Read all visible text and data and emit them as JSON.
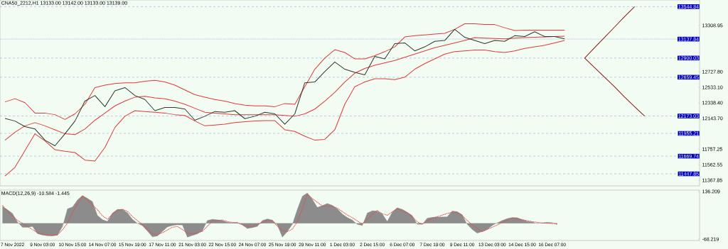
{
  "chart_data": [
    {
      "type": "line",
      "title": "CNA50_2212,H1 13133.00 13142.00 13133.00 13139.00",
      "categories": [
        null,
        null,
        null,
        null,
        null,
        null,
        null,
        null,
        null,
        null,
        null,
        null,
        null,
        null,
        null,
        null,
        null,
        null,
        null,
        null,
        null,
        null,
        null,
        null,
        null,
        null,
        null,
        null,
        null,
        null,
        null,
        null,
        null,
        null,
        null,
        null,
        null,
        null,
        null,
        null,
        null,
        null,
        null,
        null,
        null,
        null,
        null,
        null,
        null,
        null,
        null,
        null,
        null,
        null,
        null,
        null,
        null,
        null,
        null,
        null,
        null,
        null,
        null,
        null,
        null,
        null,
        null,
        null,
        null,
        null
      ],
      "ylim": [
        11297,
        13628
      ],
      "yticks": [
        13308.95,
        {
          "value": 12727.8,
          "label": "12727.80"
        },
        {
          "value": 12533.1,
          "label": "12533.10"
        },
        {
          "value": 12338.4,
          "label": "12338.40"
        },
        {
          "value": 12143.7,
          "label": "12143.70"
        },
        11757.25,
        11562.55,
        11367.85
      ],
      "tick_labels": "y",
      "ref_lines": [
        {
          "axis": "y",
          "value": 13544.84,
          "label": "13544.84",
          "color": "#7f9fe0",
          "line_style": "dashed"
        },
        {
          "axis": "y",
          "value": 13137.84,
          "label": "13137.84",
          "color": "#8fa8e0",
          "line_style": "dotted"
        },
        {
          "axis": "y",
          "value": 12900.03,
          "label": "12900.03",
          "color": "#7f9fe0",
          "line_style": "dashed"
        },
        {
          "axis": "y",
          "value": 12659.45,
          "label": "12659.45",
          "color": "#7f9fe0",
          "line_style": "dashed"
        },
        {
          "axis": "y",
          "value": 12173.03,
          "label": "12173.03",
          "color": "#7f9fe0",
          "line_style": "dashed"
        },
        {
          "axis": "y",
          "value": 11955.21,
          "label": "11955.21",
          "color": "#7f9fe0",
          "line_style": "dashed"
        },
        {
          "axis": "y",
          "value": 11669.74,
          "label": "11669.74",
          "color": "#7f9fe0",
          "line_style": "dashed"
        },
        {
          "axis": "y",
          "value": 11447.85,
          "label": "11447.85",
          "color": "#7f9fe0",
          "line_style": "dashed"
        }
      ],
      "series": [
        {
          "color": "#e03a3a",
          "values": [
            12350,
            12390,
            12340,
            12210,
            12210,
            12190,
            12130,
            12200,
            12320,
            12530,
            12560,
            12580,
            12590,
            12590,
            12610,
            12620,
            12600,
            12560,
            12500,
            12440,
            12410,
            12380,
            12360,
            12330,
            12310,
            12300,
            12300,
            12290,
            12330,
            12320,
            12540,
            12760,
            12900,
            13005,
            12970,
            12890,
            12890,
            12930,
            12980,
            13040,
            13165,
            13180,
            13190,
            13200,
            13210,
            13260,
            13330,
            13330,
            13320,
            13320,
            13280,
            13246,
            13250,
            13250,
            13250,
            13250,
            13250,
            null,
            null,
            null,
            null,
            null,
            null,
            null,
            null,
            null,
            null,
            null,
            null,
            null
          ]
        },
        {
          "color": "#e03a3a",
          "values": [
            11870,
            11970,
            12050,
            12090,
            12050,
            12000,
            11950,
            11940,
            12010,
            12120,
            12210,
            12300,
            12360,
            12410,
            12420,
            12400,
            12390,
            12360,
            12320,
            12270,
            12220,
            12210,
            12200,
            12190,
            12190,
            12190,
            12190,
            12190,
            12180,
            12170,
            12200,
            12260,
            12360,
            12471,
            12600,
            12710,
            12770,
            12810,
            12840,
            12870,
            12910,
            12950,
            12990,
            13030,
            13060,
            13090,
            13120,
            13157,
            13150,
            13145,
            13140,
            13150,
            13157,
            13160,
            13165,
            13170,
            13174,
            null,
            null,
            null,
            null,
            null,
            null,
            null,
            null,
            null,
            null,
            null,
            null,
            null
          ]
        },
        {
          "color": "#e03a3a",
          "values": [
            11420,
            11530,
            11740,
            11950,
            11860,
            11750,
            11730,
            11715,
            11620,
            11608,
            11780,
            12030,
            12170,
            12240,
            12230,
            12220,
            12210,
            12190,
            12180,
            12110,
            12050,
            12060,
            12070,
            12090,
            12100,
            12110,
            12115,
            12115,
            12000,
            11980,
            11920,
            11870,
            11880,
            12000,
            12320,
            12540,
            12600,
            12640,
            12640,
            12630,
            12660,
            12760,
            12830,
            12890,
            12950,
            12980,
            12990,
            13000,
            13000,
            12980,
            12970,
            12990,
            13020,
            13040,
            13060,
            13090,
            13121,
            null,
            null,
            null,
            null,
            null,
            null,
            null,
            null,
            null,
            null,
            null,
            null,
            null
          ]
        },
        {
          "color": "#2e3a2e",
          "values": [
            12142,
            12110,
            12040,
            12010,
            11870,
            11800,
            11950,
            12110,
            12360,
            12430,
            12290,
            12490,
            12530,
            12430,
            12380,
            12240,
            12280,
            12280,
            12260,
            12120,
            12170,
            12230,
            12220,
            12240,
            12140,
            12170,
            12220,
            12200,
            12070,
            12200,
            12590,
            12600,
            12730,
            12850,
            12760,
            12720,
            12690,
            12920,
            12890,
            13080,
            13090,
            12990,
            13040,
            13110,
            13120,
            13260,
            13160,
            13120,
            13080,
            13120,
            13110,
            13180,
            13170,
            13230,
            13170,
            13170,
            13140,
            null,
            null,
            null,
            null,
            null,
            null,
            null,
            null,
            null,
            null,
            null,
            null,
            null
          ]
        },
        {
          "color": "#8b1a1a",
          "values": [
            null,
            null,
            null,
            null,
            null,
            null,
            null,
            null,
            null,
            null,
            null,
            null,
            null,
            null,
            null,
            null,
            null,
            null,
            null,
            null,
            null,
            null,
            null,
            null,
            null,
            null,
            null,
            null,
            null,
            null,
            null,
            null,
            null,
            null,
            null,
            null,
            null,
            null,
            null,
            null,
            null,
            null,
            null,
            null,
            null,
            null,
            null,
            null,
            null,
            null,
            null,
            null,
            null,
            null,
            null,
            null,
            null,
            null,
            12900.03,
            13030,
            13160,
            13290,
            13420,
            13544.84,
            null,
            null,
            null,
            null,
            null,
            null
          ]
        },
        {
          "color": "#8b1a1a",
          "values": [
            null,
            null,
            null,
            null,
            null,
            null,
            null,
            null,
            null,
            null,
            null,
            null,
            null,
            null,
            null,
            null,
            null,
            null,
            null,
            null,
            null,
            null,
            null,
            null,
            null,
            null,
            null,
            null,
            null,
            null,
            null,
            null,
            null,
            null,
            null,
            null,
            null,
            null,
            null,
            null,
            null,
            null,
            null,
            null,
            null,
            null,
            null,
            null,
            null,
            null,
            null,
            null,
            null,
            null,
            null,
            null,
            null,
            null,
            12900.03,
            12780,
            12660,
            12540,
            12410,
            12290,
            12173.03,
            null,
            null,
            null,
            null,
            null
          ]
        }
      ]
    },
    {
      "type": "area",
      "title": "MACD(12,26,9) -10.584 -1.445",
      "ylim": [
        -74,
        142
      ],
      "yticks": [
        136.209,
        -68.219
      ],
      "categories": [
        null,
        null,
        "7 Nov 2022",
        null,
        null,
        null,
        null,
        null,
        "9 Nov 03:00",
        null,
        null,
        null,
        null,
        null,
        "10 Nov 15:00",
        null,
        null,
        null,
        null,
        null,
        "14 Nov 07:00",
        null,
        null,
        null,
        null,
        null,
        "15 Nov 19:00",
        null,
        null,
        null,
        null,
        null,
        "17 Nov 11:00",
        null,
        null,
        null,
        null,
        null,
        "21 Nov 03:00",
        null,
        null,
        null,
        null,
        null,
        "22 Nov 15:00",
        null,
        null,
        null,
        null,
        null,
        "24 Nov 07:00",
        null,
        null,
        null,
        null,
        null,
        "25 Nov 19:00",
        null,
        null,
        null,
        null,
        null,
        "29 Nov 11:00",
        null,
        null,
        null,
        null,
        null,
        "1 Dec 03:00",
        null,
        null,
        null,
        null,
        null,
        "2 Dec 15:00",
        null,
        null,
        null,
        null,
        null,
        "6 Dec 07:00",
        null,
        null,
        null,
        null,
        null,
        "7 Dec 19:00",
        null,
        null,
        null,
        null,
        null,
        "9 Dec 11:00",
        null,
        null,
        null,
        null,
        null,
        "13 Dec 03:00",
        null,
        null,
        null,
        null,
        null,
        "14 Dec 15:00",
        null,
        null,
        null,
        null,
        null,
        "16 Dec 07:00",
        null,
        null,
        null,
        null,
        null,
        null,
        null,
        null,
        null,
        null,
        null,
        null,
        null,
        null,
        null,
        null,
        null,
        null,
        null,
        null,
        null,
        null,
        null,
        null,
        null,
        null,
        null,
        null,
        null
      ],
      "series": [
        {
          "color": "#8c8c8c",
          "values": [
            72,
            58,
            42,
            5,
            -18,
            -18,
            -14,
            -45,
            -51,
            -54,
            -55,
            -51,
            -15,
            62,
            70,
            100,
            119,
            107,
            93,
            34,
            16,
            8,
            44,
            60,
            60,
            45,
            17,
            0,
            -11,
            -34,
            -59,
            -55,
            -35,
            -16,
            -10,
            -7,
            -8,
            -60,
            -53,
            -46,
            -33,
            12,
            17,
            15,
            12,
            4,
            2,
            4,
            -8,
            -23,
            -19,
            -14,
            12,
            19,
            14,
            -8,
            -60,
            -36,
            -5,
            60,
            116,
            130,
            103,
            68,
            76,
            85,
            77,
            62,
            40,
            25,
            14,
            -5,
            -10,
            44,
            54,
            52,
            40,
            8,
            48,
            67,
            60,
            48,
            33,
            -5,
            -5,
            22,
            26,
            27,
            27,
            28,
            53,
            50,
            37,
            -5,
            -27,
            -43,
            -36,
            -27,
            -10,
            2,
            12,
            20,
            25,
            24,
            16,
            8,
            6,
            -2,
            2,
            4,
            3,
            -6,
            null,
            null,
            null,
            null,
            null,
            null,
            null,
            null,
            null,
            null,
            null,
            null,
            null,
            null,
            null,
            null,
            null,
            null,
            null,
            null,
            null,
            null,
            null,
            null,
            null,
            null,
            null,
            null
          ]
        },
        {
          "type": "line",
          "color": "#e05050",
          "line_style": "dotted",
          "values": [
            77,
            50,
            30,
            12,
            0,
            -15,
            -27,
            -41,
            -46,
            -49,
            -51,
            -50,
            -28,
            0,
            45,
            83,
            117,
            100,
            78,
            58,
            32,
            17,
            39,
            54,
            60,
            51,
            29,
            11,
            -5,
            -26,
            -45,
            -49,
            -41,
            -29,
            -17,
            -14,
            -27,
            -42,
            -45,
            -40,
            -35,
            -13,
            9,
            11,
            14,
            7,
            4,
            1,
            -6,
            -13,
            -16,
            -3,
            2,
            12,
            9,
            -12,
            -31,
            -36,
            -25,
            6,
            63,
            124,
            106,
            90,
            74,
            72,
            72,
            65,
            50,
            35,
            24,
            10,
            -3,
            16,
            38,
            55,
            41,
            34,
            49,
            62,
            53,
            45,
            28,
            6,
            -4,
            9,
            22,
            28,
            35,
            42,
            47,
            44,
            33,
            12,
            -7,
            -22,
            -36,
            -27,
            -17,
            -8,
            4,
            13,
            22,
            18,
            15,
            11,
            7,
            4,
            1,
            0,
            -1,
            -2,
            null,
            null,
            null,
            null,
            null,
            null,
            null,
            null,
            null,
            null,
            null,
            null,
            null,
            null,
            null,
            null,
            null,
            null,
            null,
            null,
            null,
            null,
            null,
            null,
            null,
            null,
            null,
            null
          ]
        }
      ]
    }
  ]
}
